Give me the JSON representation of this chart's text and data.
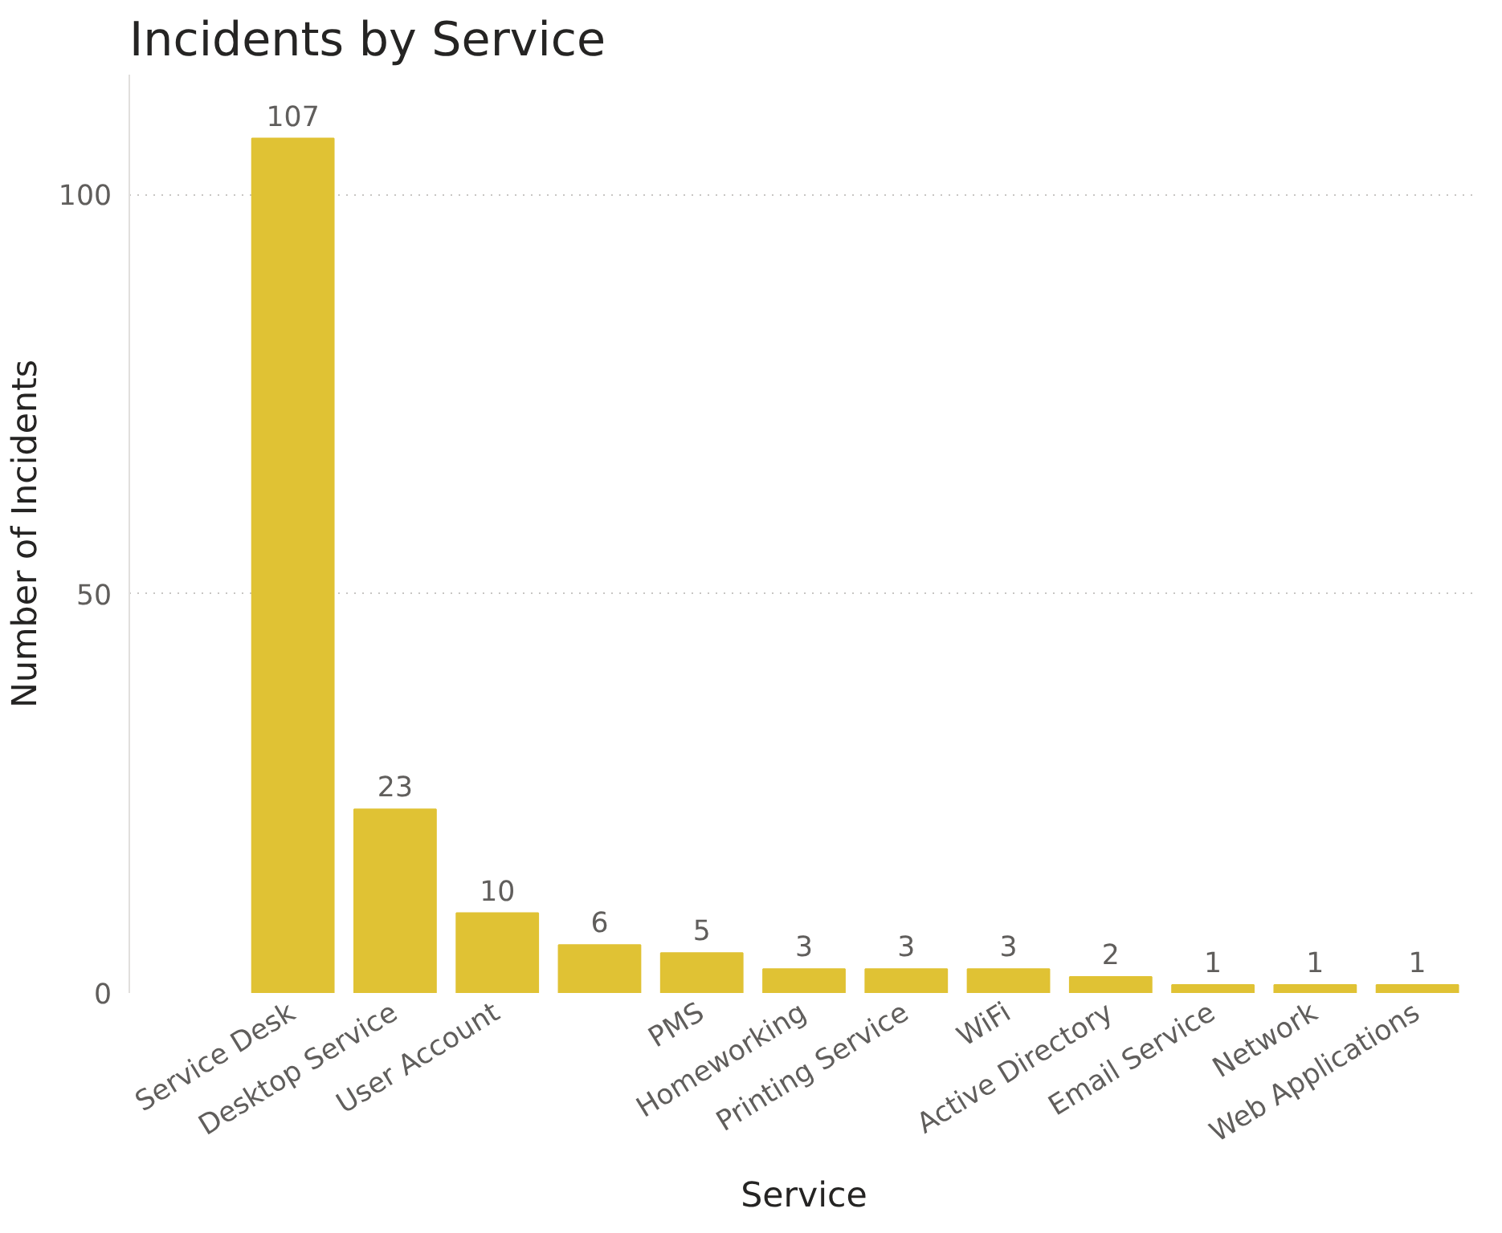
{
  "chart_data": {
    "type": "bar",
    "title": "Incidents by Service",
    "xlabel": "Service",
    "ylabel": "Number of Incidents",
    "categories": [
      "Service Desk",
      "Desktop Service",
      "User Account",
      null,
      "PMS",
      "Homeworking",
      "Printing Service",
      "WiFi",
      "Active Directory",
      "Email Service",
      "Network",
      "Web Applications"
    ],
    "values": [
      107,
      23,
      10,
      6,
      5,
      3,
      3,
      3,
      2,
      1,
      1,
      1
    ],
    "color": "#e0c234",
    "ylim": [
      0,
      115
    ],
    "yticks": [
      0,
      50,
      100
    ],
    "grid": "y",
    "data_labels": true
  }
}
